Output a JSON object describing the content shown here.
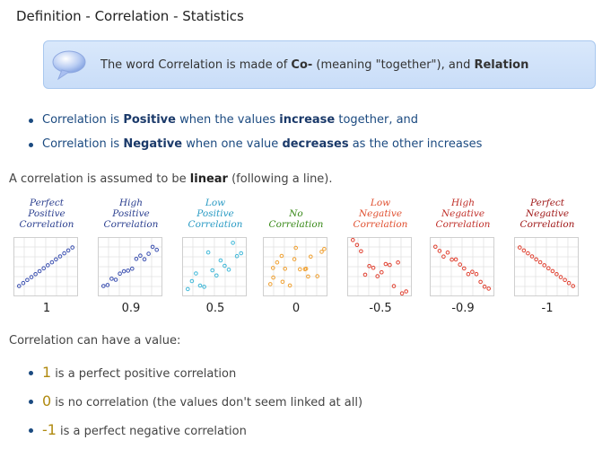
{
  "page": {
    "title": "Definition - Correlation - Statistics"
  },
  "callout": {
    "icon": "speech-bubble-icon",
    "pre": "The word Correlation is made of ",
    "co": "Co-",
    "mid": " (meaning \"together\"), and ",
    "relation": "Relation"
  },
  "bullets1": [
    {
      "pre": "Correlation is ",
      "bold1": "Positive",
      "mid": " when the values ",
      "bold2": "increase",
      "post": " together, and"
    },
    {
      "pre": "Correlation is ",
      "bold1": "Negative",
      "mid": " when one value ",
      "bold2": "decreases",
      "post": " as the other increases"
    }
  ],
  "linear": {
    "pre": "A correlation is assumed to be ",
    "bold": "linear",
    "post": " (following a line)."
  },
  "charts": [
    {
      "lines": [
        "Perfect",
        "Positive",
        "Correlation"
      ],
      "value": "1",
      "color": "#2b3f8f",
      "r": 1
    },
    {
      "lines": [
        "High",
        "Positive",
        "Correlation"
      ],
      "value": "0.9",
      "color": "#2b3f8f",
      "r": 0.9
    },
    {
      "lines": [
        "Low",
        "Positive",
        "Correlation"
      ],
      "value": "0.5",
      "color": "#2a9bc4",
      "r": 0.5
    },
    {
      "lines": [
        "No",
        "Correlation"
      ],
      "value": "0",
      "color": "#3a8a1a",
      "r": 0
    },
    {
      "lines": [
        "Low",
        "Negative",
        "Correlation"
      ],
      "value": "-0.5",
      "color": "#e05030",
      "r": -0.5
    },
    {
      "lines": [
        "High",
        "Negative",
        "Correlation"
      ],
      "value": "-0.9",
      "color": "#c0302a",
      "r": -0.9
    },
    {
      "lines": [
        "Perfect",
        "Negative",
        "Correlation"
      ],
      "value": "-1",
      "color": "#a01818",
      "r": -1
    }
  ],
  "canhave": "Correlation can have a value:",
  "bullets2": [
    {
      "num": "1",
      "text": "is a perfect positive correlation"
    },
    {
      "num": "0",
      "text": "is no correlation (the values don't seem linked at all)"
    },
    {
      "num": "-1",
      "text": "is a perfect negative correlation"
    }
  ],
  "colors": {
    "blue_dots": "#3a4fb0",
    "cyan_dots": "#3fb8d8",
    "orange_dots": "#f0a030",
    "red_dots": "#e04030"
  }
}
